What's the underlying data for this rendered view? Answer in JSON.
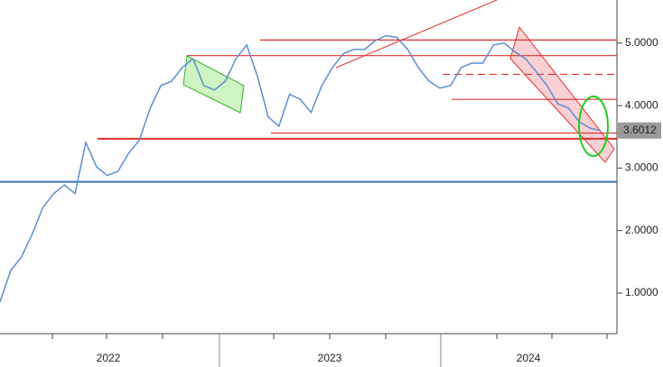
{
  "chart_data": {
    "type": "line",
    "values": [
      0.86,
      1.36,
      1.58,
      1.94,
      2.37,
      2.59,
      2.73,
      2.59,
      3.41,
      3.02,
      2.88,
      2.95,
      3.24,
      3.45,
      3.96,
      4.32,
      4.39,
      4.61,
      4.75,
      4.32,
      4.25,
      4.39,
      4.75,
      4.97,
      4.47,
      3.82,
      3.67,
      4.18,
      4.1,
      3.89,
      4.32,
      4.61,
      4.83,
      4.9,
      4.9,
      5.04,
      5.12,
      5.09,
      4.9,
      4.61,
      4.39,
      4.28,
      4.32,
      4.61,
      4.68,
      4.68,
      4.97,
      5.0,
      4.86,
      4.75,
      4.54,
      4.32,
      4.03,
      3.96,
      3.74,
      3.64,
      3.6
    ],
    "color": "#5b8fd0",
    "x_labels": [
      "2022",
      "2023",
      "2024"
    ],
    "ylim": [
      0.35,
      5.69
    ],
    "yticks": [
      {
        "value": 1,
        "label": "1.0000"
      },
      {
        "value": 2,
        "label": "2.0000"
      },
      {
        "value": 3,
        "label": "3.0000"
      },
      {
        "value": 4,
        "label": "4.0000"
      },
      {
        "value": 5,
        "label": "5.0000"
      }
    ],
    "last_value": 3.6012,
    "levels": [
      {
        "value": 5.05,
        "color": "#e03030"
      },
      {
        "value": 4.8,
        "color": "#e03030"
      },
      {
        "value": 4.5,
        "color": "#e03030"
      },
      {
        "value": 4.1,
        "color": "#e03030"
      },
      {
        "value": 3.56,
        "color": "#e03030"
      },
      {
        "value": 3.47,
        "color": "#e03030"
      },
      {
        "value": 2.78,
        "color": "#3a6fb5"
      }
    ]
  }
}
